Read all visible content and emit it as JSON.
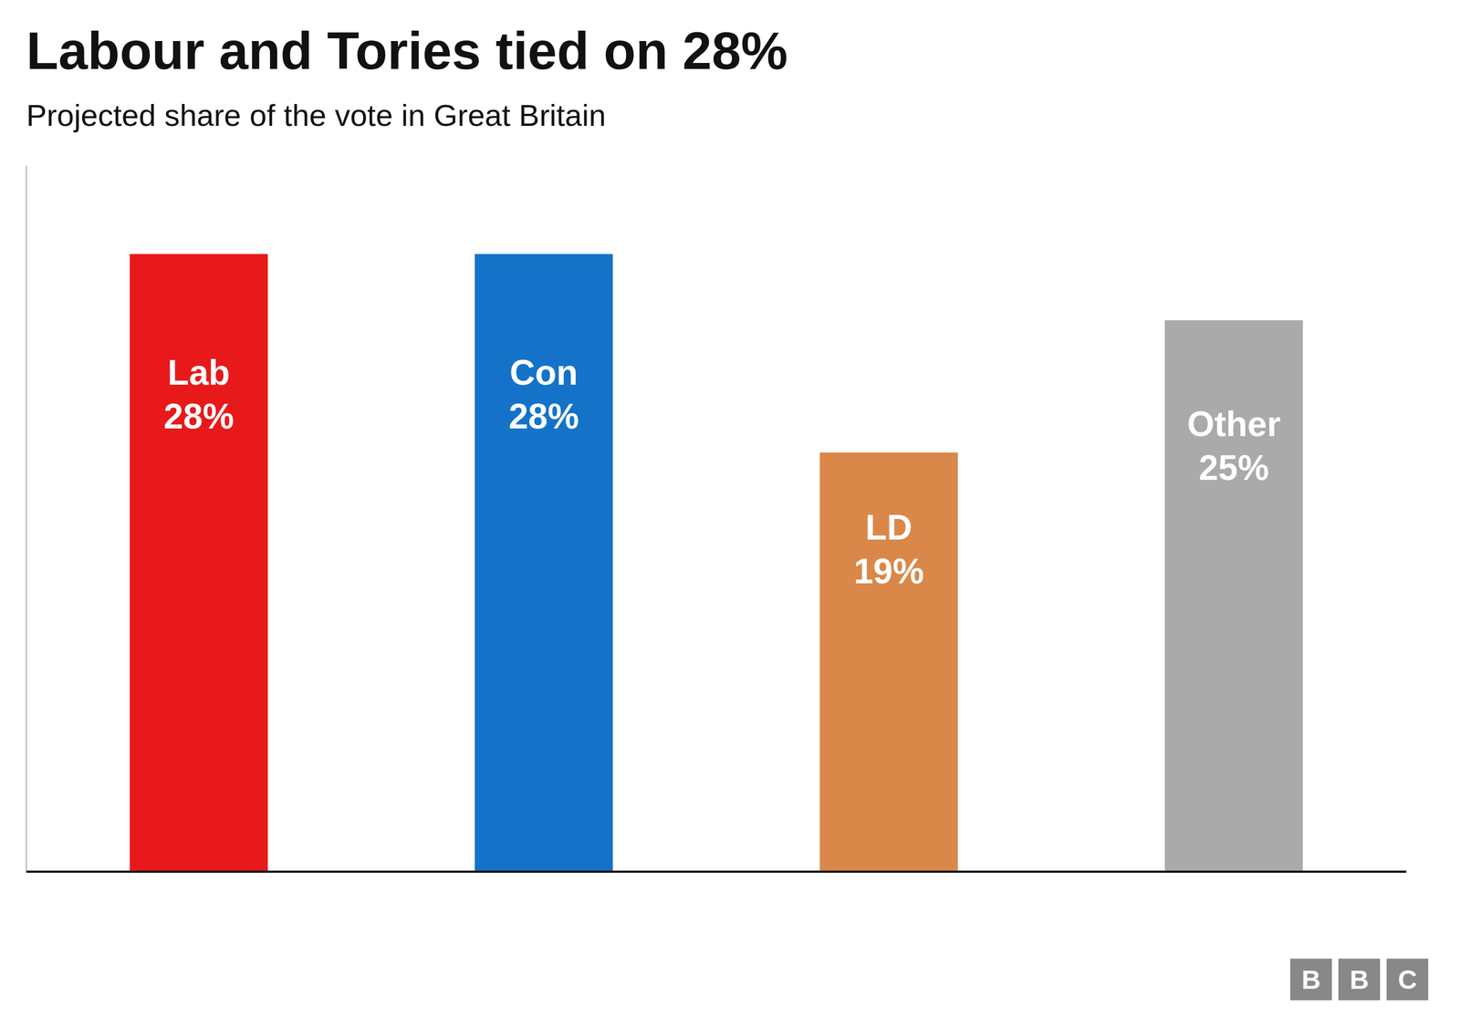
{
  "chart_data": {
    "type": "bar",
    "title": "Labour and Tories tied on 28%",
    "subtitle": "Projected share of the vote in Great Britain",
    "categories": [
      "Lab",
      "Con",
      "LD",
      "Other"
    ],
    "values": [
      28,
      28,
      19,
      25
    ],
    "value_labels": [
      "28%",
      "28%",
      "19%",
      "25%"
    ],
    "colors": [
      "#e8191a",
      "#1473c8",
      "#d9884a",
      "#aaaaaa"
    ],
    "ylim": [
      0,
      32
    ],
    "data_labels": true,
    "tick_labels": false,
    "grid": false,
    "annotations": [
      "B",
      "B",
      "C"
    ]
  }
}
